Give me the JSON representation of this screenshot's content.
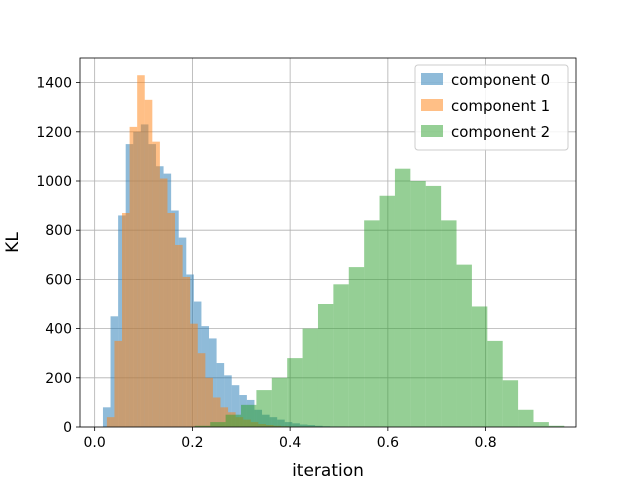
{
  "chart_data": {
    "type": "bar",
    "title": "",
    "xlabel": "iteration",
    "ylabel": "KL",
    "xlim": [
      -0.03,
      0.985
    ],
    "ylim": [
      0,
      1500
    ],
    "xticks": [
      0.0,
      0.2,
      0.4,
      0.6,
      0.8
    ],
    "xtick_labels": [
      "0.0",
      "0.2",
      "0.4",
      "0.6",
      "0.8"
    ],
    "yticks": [
      0,
      200,
      400,
      600,
      800,
      1000,
      1200,
      1400
    ],
    "ytick_labels": [
      "0",
      "200",
      "400",
      "600",
      "800",
      "1000",
      "1200",
      "1400"
    ],
    "grid": true,
    "legend_position": "top-right",
    "series": [
      {
        "name": "component 0",
        "color": "#1f77b4",
        "bin_edges": [
          0.017,
          0.0325,
          0.048,
          0.0635,
          0.079,
          0.0945,
          0.11,
          0.1255,
          0.141,
          0.1565,
          0.172,
          0.1875,
          0.203,
          0.2185,
          0.234,
          0.2495,
          0.265,
          0.2805,
          0.296,
          0.3115,
          0.327,
          0.3425,
          0.358,
          0.3735,
          0.389,
          0.4045,
          0.42,
          0.4355,
          0.451,
          0.4665,
          0.482,
          0.4975,
          0.513
        ],
        "counts": [
          80,
          450,
          860,
          1150,
          1200,
          1230,
          1150,
          1060,
          1030,
          880,
          770,
          620,
          510,
          410,
          360,
          260,
          210,
          170,
          130,
          110,
          70,
          50,
          40,
          30,
          20,
          15,
          10,
          8,
          5,
          3,
          2,
          1
        ]
      },
      {
        "name": "component 1",
        "color": "#ff7f0e",
        "bin_edges": [
          0.025,
          0.0405,
          0.056,
          0.0715,
          0.087,
          0.1025,
          0.118,
          0.1335,
          0.149,
          0.1645,
          0.18,
          0.1955,
          0.211,
          0.2265,
          0.242,
          0.2575,
          0.273,
          0.2885,
          0.304,
          0.3195,
          0.335,
          0.3505,
          0.366,
          0.3815,
          0.397,
          0.4125,
          0.428,
          0.4435,
          0.459
        ],
        "counts": [
          40,
          350,
          870,
          1220,
          1430,
          1330,
          1160,
          1010,
          870,
          740,
          610,
          420,
          300,
          200,
          120,
          80,
          60,
          40,
          30,
          20,
          12,
          8,
          5,
          3,
          2,
          1,
          1,
          1
        ]
      },
      {
        "name": "component 2",
        "color": "#2ca02c",
        "bin_edges": [
          0.205,
          0.2365,
          0.268,
          0.2995,
          0.331,
          0.3625,
          0.394,
          0.4255,
          0.457,
          0.4885,
          0.52,
          0.5515,
          0.583,
          0.6145,
          0.646,
          0.6775,
          0.709,
          0.7405,
          0.772,
          0.8035,
          0.835,
          0.8665,
          0.898,
          0.9295,
          0.961
        ],
        "counts": [
          5,
          20,
          50,
          90,
          150,
          200,
          280,
          400,
          500,
          580,
          650,
          840,
          940,
          1050,
          1000,
          980,
          840,
          660,
          490,
          350,
          190,
          70,
          20,
          5
        ]
      }
    ]
  }
}
